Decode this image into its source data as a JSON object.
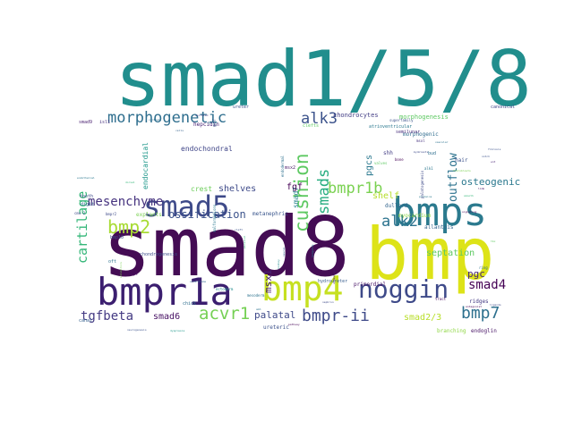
{
  "words": [
    {
      "text": "smad1/5/8",
      "color": "#218e8d"
    },
    {
      "text": "smad8",
      "color": "#440c54"
    },
    {
      "text": "bmp",
      "color": "#dde318"
    },
    {
      "text": "bmps",
      "color": "#2b7a8e"
    },
    {
      "text": "bmpr1a",
      "color": "#3b1e6f"
    },
    {
      "text": "bmp4",
      "color": "#c6e021"
    },
    {
      "text": "noggin",
      "color": "#3e4a89"
    },
    {
      "text": "smad5",
      "color": "#3e4a89"
    },
    {
      "text": "morphogenetic",
      "color": "#2e6e8e"
    },
    {
      "text": "cushion",
      "color": "#5ec962"
    },
    {
      "text": "smads",
      "color": "#27ad81"
    },
    {
      "text": "alk3",
      "color": "#3b528b"
    },
    {
      "text": "bmpr1b",
      "color": "#7ad151"
    },
    {
      "text": "bmp2",
      "color": "#a8db34"
    },
    {
      "text": "alk2",
      "color": "#2c738e"
    },
    {
      "text": "acvr1",
      "color": "#75d054"
    },
    {
      "text": "bmpr-ii",
      "color": "#3e4a89"
    },
    {
      "text": "bmp7",
      "color": "#2d708e"
    },
    {
      "text": "smad4",
      "color": "#440154"
    },
    {
      "text": "tgfbeta",
      "color": "#443a83"
    },
    {
      "text": "cartilage",
      "color": "#35b779"
    },
    {
      "text": "mesenchyme",
      "color": "#46337f"
    },
    {
      "text": "ossification",
      "color": "#3b528b"
    },
    {
      "text": "outflow",
      "color": "#2c728e"
    },
    {
      "text": "osteogenic",
      "color": "#2a788e"
    },
    {
      "text": "msx1",
      "color": "#481f70"
    },
    {
      "text": "palatal",
      "color": "#3e4989"
    },
    {
      "text": "smad6",
      "color": "#471063"
    },
    {
      "text": "smad2/3",
      "color": "#b8de29"
    },
    {
      "text": "pgc",
      "color": "#482576"
    },
    {
      "text": "septation",
      "color": "#5ec962"
    },
    {
      "text": "pgcs",
      "color": "#2a788e"
    },
    {
      "text": "smad7",
      "color": "#26828e"
    },
    {
      "text": "fgf",
      "color": "#440154"
    },
    {
      "text": "shelf",
      "color": "#b5de2b"
    },
    {
      "text": "shelves",
      "color": "#3e4a89"
    },
    {
      "text": "crest",
      "color": "#6ccd5a"
    },
    {
      "text": "endocardial",
      "color": "#1f988b"
    },
    {
      "text": "endochondral",
      "color": "#404688"
    },
    {
      "text": "chondrocytes",
      "color": "#433e85"
    },
    {
      "text": "morphogenesis",
      "color": "#5ec962"
    },
    {
      "text": "morphogenic",
      "color": "#2f6c8e"
    },
    {
      "text": "hepcidin",
      "color": "#482475"
    },
    {
      "text": "ureteric",
      "color": "#3b518b"
    },
    {
      "text": "primordial",
      "color": "#471365"
    },
    {
      "text": "allantois",
      "color": "#33638d"
    },
    {
      "text": "dullard",
      "color": "#32648e"
    },
    {
      "text": "myocardium",
      "color": "#8fd744"
    },
    {
      "text": "metanephric",
      "color": "#39558c"
    },
    {
      "text": "explants",
      "color": "#7ad151"
    },
    {
      "text": "chondrogenesis",
      "color": "#3d4d8a"
    },
    {
      "text": "hydroureter",
      "color": "#365c8d"
    },
    {
      "text": "branching",
      "color": "#8fd744"
    },
    {
      "text": "endoglin",
      "color": "#471365"
    },
    {
      "text": "ridges",
      "color": "#443983"
    },
    {
      "text": "bmp10",
      "color": "#3e4a89"
    },
    {
      "text": "tooth",
      "color": "#3e4a89"
    },
    {
      "text": "digit",
      "color": "#32658e"
    },
    {
      "text": "chick",
      "color": "#2e6d8e"
    },
    {
      "text": "canal",
      "color": "#34608d"
    },
    {
      "text": "oft",
      "color": "#2c728e"
    },
    {
      "text": "bud",
      "color": "#2e6e8e"
    },
    {
      "text": "hair",
      "color": "#3b518b"
    },
    {
      "text": "shh",
      "color": "#433e85"
    },
    {
      "text": "msx2",
      "color": "#481668"
    },
    {
      "text": "clefts",
      "color": "#5ec962"
    },
    {
      "text": "semilunar",
      "color": "#472d7b"
    },
    {
      "text": "atrioventricular",
      "color": "#2a788e"
    },
    {
      "text": "superfamily",
      "color": "#3b528b"
    },
    {
      "text": "canonical",
      "color": "#404688"
    },
    {
      "text": "msxl",
      "color": "#46337f"
    },
    {
      "text": "alk1",
      "color": "#2a768e"
    },
    {
      "text": "bmp9",
      "color": "#460b5e"
    },
    {
      "text": "bmpr2",
      "color": "#3e4a89"
    },
    {
      "text": "ectoderm",
      "color": "#228c8d"
    },
    {
      "text": "mesoderm",
      "color": "#2c728e"
    },
    {
      "text": "gdf",
      "color": "#39568c"
    },
    {
      "text": "ureter",
      "color": "#3b528b"
    },
    {
      "text": "smad9",
      "color": "#481d6f"
    },
    {
      "text": "isl1",
      "color": "#46307e"
    },
    {
      "text": "secreted",
      "color": "#433e85"
    },
    {
      "text": "endodermal",
      "color": "#2d708e"
    },
    {
      "text": "valves",
      "color": "#5ec962"
    },
    {
      "text": "bone",
      "color": "#440154"
    },
    {
      "text": "malformations",
      "color": "#2a788e"
    },
    {
      "text": "palatogenesis",
      "color": "#3e4a89"
    },
    {
      "text": "inhibitors",
      "color": "#7ad151"
    },
    {
      "text": "ligands",
      "color": "#3e4a89"
    },
    {
      "text": "tract",
      "color": "#46085c"
    },
    {
      "text": "fibrosis",
      "color": "#3b528b"
    },
    {
      "text": "ring",
      "color": "#2d708e"
    },
    {
      "text": "hedgehog",
      "color": "#2a788e"
    },
    {
      "text": "neural",
      "color": "#33638d"
    },
    {
      "text": "anomalies",
      "color": "#481a6c"
    },
    {
      "text": "paraxial",
      "color": "#35b779"
    },
    {
      "text": "antagonist",
      "color": "#440154"
    },
    {
      "text": "fibroblasts",
      "color": "#7ad151"
    },
    {
      "text": "myoblasts",
      "color": "#3e4a89"
    },
    {
      "text": "proteins",
      "color": "#2a788e"
    },
    {
      "text": "cells",
      "color": "#34608d"
    },
    {
      "text": "ventral",
      "color": "#2e6e8e"
    },
    {
      "text": "dorsal",
      "color": "#35b779"
    },
    {
      "text": "limb",
      "color": "#471365"
    },
    {
      "text": "sclerotome",
      "color": "#31688e"
    },
    {
      "text": "dysplasia",
      "color": "#1f988b"
    },
    {
      "text": "neurogenesis",
      "color": "#3b528b"
    },
    {
      "text": "amh",
      "color": "#2c728e"
    },
    {
      "text": "pathway",
      "color": "#440154"
    },
    {
      "text": "cmo-2",
      "color": "#3e4a89"
    },
    {
      "text": "endothelial",
      "color": "#2a788e"
    },
    {
      "text": "tbx",
      "color": "#5ec962"
    },
    {
      "text": "notch",
      "color": "#3b528b"
    },
    {
      "text": "wnt",
      "color": "#482475"
    },
    {
      "text": "kidney",
      "color": "#228c8d"
    },
    {
      "text": "nephron",
      "color": "#3e4a89"
    },
    {
      "text": "smooth",
      "color": "#35b779"
    },
    {
      "text": "vascular",
      "color": "#2c728e"
    },
    {
      "text": "signaling",
      "color": "#440154"
    },
    {
      "text": "cleft",
      "color": "#3b528b"
    },
    {
      "text": "palate",
      "color": "#2a788e"
    }
  ]
}
